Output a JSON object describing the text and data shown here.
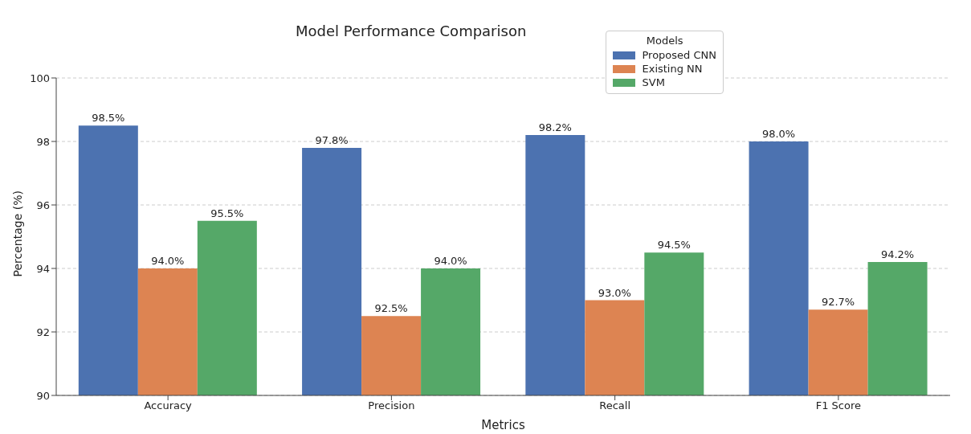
{
  "chart_data": {
    "type": "bar",
    "title": "Model Performance Comparison",
    "xlabel": "Metrics",
    "ylabel": "Percentage (%)",
    "legend_title": "Models",
    "legend": "top right",
    "grid": "y",
    "categories": [
      "Accuracy",
      "Precision",
      "Recall",
      "F1 Score"
    ],
    "series": [
      {
        "name": "Proposed CNN",
        "color": "#4c72b0",
        "values": [
          98.5,
          97.8,
          98.2,
          98.0
        ],
        "value_labels": [
          "98.5%",
          "97.8%",
          "98.2%",
          "98.0%"
        ]
      },
      {
        "name": "Existing NN",
        "color": "#dd8452",
        "values": [
          94.0,
          92.5,
          93.0,
          92.7
        ],
        "value_labels": [
          "94.0%",
          "92.5%",
          "93.0%",
          "92.7%"
        ]
      },
      {
        "name": "SVM",
        "color": "#55a868",
        "values": [
          95.5,
          94.0,
          94.5,
          94.2
        ],
        "value_labels": [
          "95.5%",
          "94.0%",
          "94.5%",
          "94.2%"
        ]
      }
    ],
    "ylim": [
      90,
      100
    ],
    "yticks": [
      90,
      92,
      94,
      96,
      98,
      100
    ]
  }
}
